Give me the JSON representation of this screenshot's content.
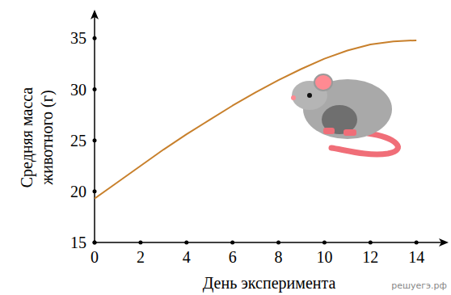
{
  "chart_data": {
    "type": "line",
    "x_label": "День эксперимента",
    "y_label": [
      "Средняя масса",
      "животного (г)"
    ],
    "annotations": [
      "решуегэ.рф"
    ],
    "x": [
      0,
      1,
      2,
      3,
      4,
      5,
      6,
      7,
      8,
      9,
      10,
      11,
      12,
      13,
      14
    ],
    "series": [
      {
        "name": "Средняя масса животного",
        "color": "#c8802c",
        "values": [
          19.3,
          20.9,
          22.5,
          24.1,
          25.6,
          27.0,
          28.4,
          29.7,
          30.9,
          32.0,
          33.0,
          33.8,
          34.4,
          34.7,
          34.8
        ]
      }
    ],
    "xlim": [
      0,
      15.4
    ],
    "ylim": [
      15,
      37.8
    ],
    "xticks": [
      0,
      2,
      4,
      6,
      8,
      10,
      12,
      14
    ],
    "yticks": [
      15,
      20,
      25,
      30,
      35
    ],
    "grid": false
  }
}
